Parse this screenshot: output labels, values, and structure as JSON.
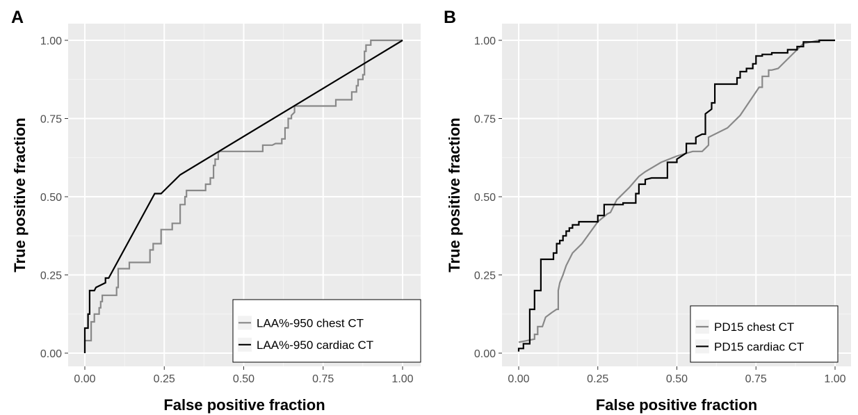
{
  "chart_data": [
    {
      "panel": "A",
      "type": "line",
      "xlabel": "False positive fraction",
      "ylabel": "True positive fraction",
      "xlim": [
        0,
        1
      ],
      "ylim": [
        0,
        1
      ],
      "x_ticks": [
        "0.00",
        "0.25",
        "0.50",
        "0.75",
        "1.00"
      ],
      "y_ticks": [
        "0.00",
        "0.25",
        "0.50",
        "0.75",
        "1.00"
      ],
      "grid": true,
      "legend_position": "bottom-right",
      "series": [
        {
          "name": "LAA%-950 chest CT",
          "color": "#888888",
          "points": [
            [
              0,
              0
            ],
            [
              0,
              0.04
            ],
            [
              0.02,
              0.04
            ],
            [
              0.02,
              0.1
            ],
            [
              0.03,
              0.1
            ],
            [
              0.03,
              0.125
            ],
            [
              0.045,
              0.125
            ],
            [
              0.045,
              0.145
            ],
            [
              0.05,
              0.145
            ],
            [
              0.05,
              0.165
            ],
            [
              0.055,
              0.165
            ],
            [
              0.055,
              0.185
            ],
            [
              0.1,
              0.185
            ],
            [
              0.1,
              0.21
            ],
            [
              0.105,
              0.21
            ],
            [
              0.105,
              0.27
            ],
            [
              0.14,
              0.27
            ],
            [
              0.14,
              0.29
            ],
            [
              0.205,
              0.29
            ],
            [
              0.205,
              0.33
            ],
            [
              0.215,
              0.33
            ],
            [
              0.215,
              0.35
            ],
            [
              0.24,
              0.35
            ],
            [
              0.24,
              0.395
            ],
            [
              0.275,
              0.395
            ],
            [
              0.275,
              0.415
            ],
            [
              0.3,
              0.415
            ],
            [
              0.3,
              0.475
            ],
            [
              0.315,
              0.475
            ],
            [
              0.315,
              0.5
            ],
            [
              0.32,
              0.5
            ],
            [
              0.32,
              0.52
            ],
            [
              0.38,
              0.52
            ],
            [
              0.38,
              0.54
            ],
            [
              0.395,
              0.54
            ],
            [
              0.395,
              0.56
            ],
            [
              0.405,
              0.56
            ],
            [
              0.405,
              0.6
            ],
            [
              0.41,
              0.6
            ],
            [
              0.41,
              0.62
            ],
            [
              0.42,
              0.62
            ],
            [
              0.42,
              0.64
            ],
            [
              0.425,
              0.645
            ],
            [
              0.56,
              0.645
            ],
            [
              0.56,
              0.665
            ],
            [
              0.59,
              0.665
            ],
            [
              0.6,
              0.67
            ],
            [
              0.62,
              0.67
            ],
            [
              0.62,
              0.685
            ],
            [
              0.63,
              0.685
            ],
            [
              0.63,
              0.72
            ],
            [
              0.64,
              0.72
            ],
            [
              0.64,
              0.75
            ],
            [
              0.65,
              0.75
            ],
            [
              0.65,
              0.76
            ],
            [
              0.66,
              0.77
            ],
            [
              0.66,
              0.79
            ],
            [
              0.79,
              0.79
            ],
            [
              0.79,
              0.81
            ],
            [
              0.84,
              0.81
            ],
            [
              0.84,
              0.835
            ],
            [
              0.855,
              0.835
            ],
            [
              0.855,
              0.855
            ],
            [
              0.86,
              0.855
            ],
            [
              0.86,
              0.875
            ],
            [
              0.875,
              0.875
            ],
            [
              0.875,
              0.89
            ],
            [
              0.88,
              0.89
            ],
            [
              0.88,
              0.965
            ],
            [
              0.885,
              0.965
            ],
            [
              0.885,
              0.985
            ],
            [
              0.9,
              0.985
            ],
            [
              0.9,
              1
            ],
            [
              1,
              1
            ]
          ]
        },
        {
          "name": "LAA%-950 cardiac CT",
          "color": "#000000",
          "points": [
            [
              0,
              0
            ],
            [
              0,
              0.08
            ],
            [
              0.01,
              0.08
            ],
            [
              0.01,
              0.125
            ],
            [
              0.015,
              0.125
            ],
            [
              0.015,
              0.2
            ],
            [
              0.03,
              0.2
            ],
            [
              0.035,
              0.21
            ],
            [
              0.065,
              0.225
            ],
            [
              0.065,
              0.24
            ],
            [
              0.075,
              0.24
            ],
            [
              0.22,
              0.51
            ],
            [
              0.24,
              0.51
            ],
            [
              0.26,
              0.53
            ],
            [
              0.3,
              0.57
            ],
            [
              0.65,
              0.785
            ],
            [
              1,
              1
            ]
          ]
        }
      ]
    },
    {
      "panel": "B",
      "type": "line",
      "xlabel": "False positive fraction",
      "ylabel": "True positive fraction",
      "xlim": [
        0,
        1
      ],
      "ylim": [
        0,
        1
      ],
      "x_ticks": [
        "0.00",
        "0.25",
        "0.50",
        "0.75",
        "1.00"
      ],
      "y_ticks": [
        "0.00",
        "0.25",
        "0.50",
        "0.75",
        "1.00"
      ],
      "grid": true,
      "legend_position": "bottom-right",
      "series": [
        {
          "name": "PD15 chest CT",
          "color": "#888888",
          "points": [
            [
              0,
              0.035
            ],
            [
              0.05,
              0.045
            ],
            [
              0.05,
              0.06
            ],
            [
              0.06,
              0.06
            ],
            [
              0.06,
              0.085
            ],
            [
              0.075,
              0.085
            ],
            [
              0.085,
              0.115
            ],
            [
              0.105,
              0.13
            ],
            [
              0.12,
              0.14
            ],
            [
              0.125,
              0.14
            ],
            [
              0.125,
              0.2
            ],
            [
              0.13,
              0.225
            ],
            [
              0.14,
              0.25
            ],
            [
              0.15,
              0.28
            ],
            [
              0.17,
              0.32
            ],
            [
              0.19,
              0.34
            ],
            [
              0.2,
              0.35
            ],
            [
              0.25,
              0.42
            ],
            [
              0.28,
              0.445
            ],
            [
              0.29,
              0.45
            ],
            [
              0.31,
              0.49
            ],
            [
              0.35,
              0.53
            ],
            [
              0.38,
              0.565
            ],
            [
              0.4,
              0.58
            ],
            [
              0.45,
              0.61
            ],
            [
              0.5,
              0.63
            ],
            [
              0.55,
              0.645
            ],
            [
              0.58,
              0.645
            ],
            [
              0.6,
              0.665
            ],
            [
              0.6,
              0.69
            ],
            [
              0.66,
              0.72
            ],
            [
              0.7,
              0.76
            ],
            [
              0.74,
              0.82
            ],
            [
              0.76,
              0.85
            ],
            [
              0.77,
              0.85
            ],
            [
              0.77,
              0.885
            ],
            [
              0.79,
              0.885
            ],
            [
              0.79,
              0.905
            ],
            [
              0.8,
              0.905
            ],
            [
              0.82,
              0.91
            ],
            [
              0.84,
              0.93
            ],
            [
              0.86,
              0.95
            ],
            [
              0.9,
              0.99
            ],
            [
              0.95,
              1
            ],
            [
              1,
              1
            ]
          ]
        },
        {
          "name": "PD15 cardiac CT",
          "color": "#000000",
          "points": [
            [
              0,
              0.005
            ],
            [
              0,
              0.015
            ],
            [
              0.015,
              0.015
            ],
            [
              0.015,
              0.03
            ],
            [
              0.035,
              0.03
            ],
            [
              0.035,
              0.14
            ],
            [
              0.05,
              0.14
            ],
            [
              0.05,
              0.2
            ],
            [
              0.07,
              0.2
            ],
            [
              0.07,
              0.3
            ],
            [
              0.11,
              0.3
            ],
            [
              0.11,
              0.32
            ],
            [
              0.12,
              0.32
            ],
            [
              0.12,
              0.35
            ],
            [
              0.13,
              0.35
            ],
            [
              0.13,
              0.36
            ],
            [
              0.14,
              0.36
            ],
            [
              0.14,
              0.375
            ],
            [
              0.15,
              0.375
            ],
            [
              0.15,
              0.39
            ],
            [
              0.16,
              0.39
            ],
            [
              0.16,
              0.4
            ],
            [
              0.17,
              0.4
            ],
            [
              0.17,
              0.41
            ],
            [
              0.19,
              0.41
            ],
            [
              0.19,
              0.42
            ],
            [
              0.25,
              0.42
            ],
            [
              0.25,
              0.44
            ],
            [
              0.27,
              0.44
            ],
            [
              0.27,
              0.475
            ],
            [
              0.33,
              0.475
            ],
            [
              0.33,
              0.48
            ],
            [
              0.37,
              0.48
            ],
            [
              0.37,
              0.51
            ],
            [
              0.38,
              0.51
            ],
            [
              0.38,
              0.54
            ],
            [
              0.4,
              0.54
            ],
            [
              0.4,
              0.555
            ],
            [
              0.42,
              0.56
            ],
            [
              0.47,
              0.56
            ],
            [
              0.47,
              0.61
            ],
            [
              0.5,
              0.61
            ],
            [
              0.5,
              0.62
            ],
            [
              0.53,
              0.64
            ],
            [
              0.53,
              0.67
            ],
            [
              0.56,
              0.67
            ],
            [
              0.56,
              0.69
            ],
            [
              0.58,
              0.7
            ],
            [
              0.59,
              0.7
            ],
            [
              0.59,
              0.765
            ],
            [
              0.61,
              0.78
            ],
            [
              0.61,
              0.8
            ],
            [
              0.62,
              0.8
            ],
            [
              0.62,
              0.86
            ],
            [
              0.69,
              0.86
            ],
            [
              0.69,
              0.88
            ],
            [
              0.7,
              0.88
            ],
            [
              0.7,
              0.9
            ],
            [
              0.72,
              0.9
            ],
            [
              0.72,
              0.91
            ],
            [
              0.74,
              0.91
            ],
            [
              0.74,
              0.925
            ],
            [
              0.75,
              0.925
            ],
            [
              0.75,
              0.95
            ],
            [
              0.77,
              0.95
            ],
            [
              0.77,
              0.955
            ],
            [
              0.8,
              0.955
            ],
            [
              0.8,
              0.96
            ],
            [
              0.85,
              0.96
            ],
            [
              0.85,
              0.97
            ],
            [
              0.88,
              0.97
            ],
            [
              0.88,
              0.98
            ],
            [
              0.9,
              0.98
            ],
            [
              0.9,
              0.995
            ],
            [
              0.95,
              0.995
            ],
            [
              0.95,
              1
            ],
            [
              1,
              1
            ]
          ]
        }
      ]
    }
  ]
}
